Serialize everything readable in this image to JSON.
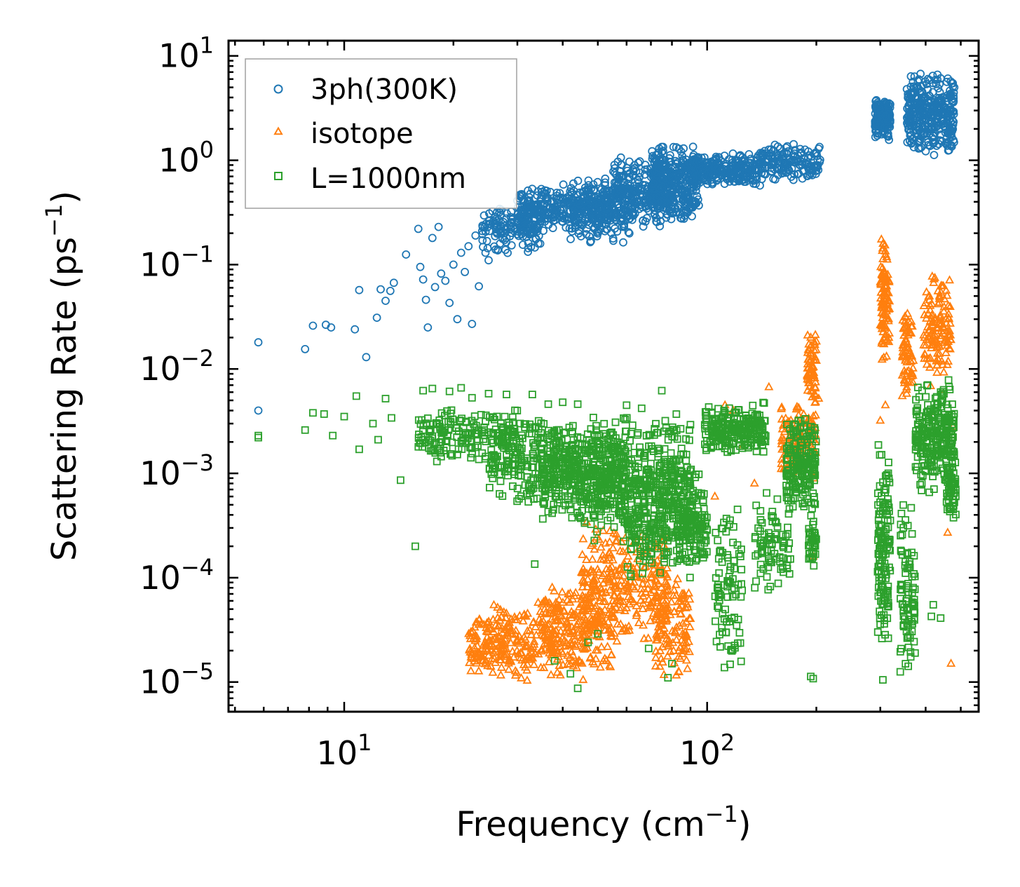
{
  "chart_data": {
    "type": "scatter",
    "xscale": "log",
    "yscale": "log",
    "xlim": [
      4.8,
      560
    ],
    "ylim": [
      5.2e-06,
      14
    ],
    "xlabel": "Frequency (cm",
    "xlabel_sup": "−1",
    "xlabel_end": ")",
    "ylabel": "Scattering Rate (ps",
    "ylabel_sup": "−1",
    "ylabel_end": ")",
    "xticks": [
      {
        "value": 10,
        "base": "10",
        "exp": "1"
      },
      {
        "value": 100,
        "base": "10",
        "exp": "2"
      }
    ],
    "yticks": [
      {
        "value": 10,
        "base": "10",
        "exp": "1"
      },
      {
        "value": 1,
        "base": "10",
        "exp": "0"
      },
      {
        "value": 0.1,
        "base": "10",
        "exp": "−1"
      },
      {
        "value": 0.01,
        "base": "10",
        "exp": "−2"
      },
      {
        "value": 0.001,
        "base": "10",
        "exp": "−3"
      },
      {
        "value": 0.0001,
        "base": "10",
        "exp": "−4"
      },
      {
        "value": 1e-05,
        "base": "10",
        "exp": "−5"
      }
    ],
    "legend_position": "top-left",
    "series": [
      {
        "name": "3ph(300K)",
        "marker": "circle",
        "color": "#1f77b4",
        "points": [
          [
            5.8,
            0.018
          ],
          [
            5.8,
            0.004
          ],
          [
            7.8,
            0.0155
          ],
          [
            8.2,
            0.026
          ],
          [
            8.9,
            0.0265
          ],
          [
            9.2,
            0.025
          ],
          [
            10.7,
            0.024
          ],
          [
            11.0,
            0.057
          ],
          [
            11.5,
            0.013
          ],
          [
            12.3,
            0.031
          ],
          [
            12.6,
            0.058
          ],
          [
            13.0,
            0.045
          ],
          [
            13.4,
            0.056
          ],
          [
            13.7,
            0.067
          ],
          [
            14.8,
            0.125
          ],
          [
            16.0,
            0.22
          ],
          [
            16.2,
            0.095
          ],
          [
            16.5,
            0.072
          ],
          [
            16.8,
            0.046
          ],
          [
            17.0,
            0.025
          ],
          [
            17.5,
            0.18
          ],
          [
            17.8,
            0.061
          ],
          [
            18.2,
            0.23
          ],
          [
            18.5,
            0.082
          ],
          [
            19.0,
            0.07
          ],
          [
            19.5,
            0.043
          ],
          [
            20.0,
            0.1
          ],
          [
            20.5,
            0.03
          ],
          [
            21.0,
            0.13
          ],
          [
            21.5,
            0.085
          ],
          [
            22.0,
            0.15
          ],
          [
            22.5,
            0.027
          ],
          [
            23.0,
            0.19
          ],
          [
            23.5,
            0.062
          ],
          [
            24.0,
            0.21
          ],
          [
            24.5,
            0.13
          ],
          [
            25.0,
            0.11
          ],
          [
            26.0,
            0.25
          ],
          [
            27.0,
            0.3
          ],
          [
            28.0,
            0.18
          ],
          [
            29.0,
            0.27
          ],
          [
            30.0,
            0.41
          ],
          [
            31.0,
            0.46
          ]
        ],
        "bands": [
          {
            "x": [
              24,
              35
            ],
            "y": [
              0.12,
              0.42
            ],
            "n": 140
          },
          {
            "x": [
              30,
              55
            ],
            "y": [
              0.2,
              0.6
            ],
            "n": 320
          },
          {
            "x": [
              42,
              62
            ],
            "y": [
              0.15,
              0.75
            ],
            "n": 160
          },
          {
            "x": [
              55,
              80
            ],
            "y": [
              0.22,
              1.1
            ],
            "n": 280
          },
          {
            "x": [
              70,
              95
            ],
            "y": [
              0.25,
              1.5
            ],
            "n": 300
          },
          {
            "x": [
              90,
              140
            ],
            "y": [
              0.55,
              1.2
            ],
            "n": 260
          },
          {
            "x": [
              140,
              205
            ],
            "y": [
              0.6,
              1.5
            ],
            "n": 160
          },
          {
            "x": [
              290,
              320
            ],
            "y": [
              1.5,
              4.2
            ],
            "n": 150
          },
          {
            "x": [
              355,
              480
            ],
            "y": [
              1.1,
              7.0
            ],
            "n": 360
          }
        ]
      },
      {
        "name": "isotope",
        "marker": "triangle",
        "color": "#ff7f0e",
        "points": [
          [
            112,
            0.0045
          ],
          [
            118,
            0.004
          ],
          [
            105,
            0.0006
          ],
          [
            97,
            0.00032
          ],
          [
            125,
            0.0018
          ],
          [
            148,
            0.0067
          ],
          [
            135,
            0.0008
          ],
          [
            160,
            0.0011
          ],
          [
            175,
            0.0016
          ],
          [
            193,
            0.02
          ],
          [
            200,
            0.012
          ],
          [
            196,
            0.00016
          ],
          [
            199,
            0.0036
          ],
          [
            203,
            0.0052
          ],
          [
            300,
            0.0032
          ],
          [
            310,
            0.0045
          ],
          [
            345,
            0.0055
          ],
          [
            355,
            0.025
          ],
          [
            365,
            0.0085
          ],
          [
            370,
            0.012
          ],
          [
            420,
            0.0035
          ],
          [
            430,
            0.0092
          ],
          [
            445,
            0.0057
          ],
          [
            460,
            0.00027
          ],
          [
            470,
            1.5e-05
          ],
          [
            476,
            0.0028
          ]
        ],
        "bands": [
          {
            "x": [
              22,
              38
            ],
            "y": [
              1e-05,
              6e-05
            ],
            "n": 260
          },
          {
            "x": [
              35,
              55
            ],
            "y": [
              1e-05,
              9e-05
            ],
            "n": 240
          },
          {
            "x": [
              45,
              78
            ],
            "y": [
              2e-05,
              0.00035
            ],
            "n": 300
          },
          {
            "x": [
              72,
              90
            ],
            "y": [
              1e-05,
              0.00012
            ],
            "n": 120
          },
          {
            "x": [
              160,
              200
            ],
            "y": [
              0.0008,
              0.005
            ],
            "n": 120
          },
          {
            "x": [
              188,
              200
            ],
            "y": [
              0.004,
              0.025
            ],
            "n": 60
          },
          {
            "x": [
              300,
              318
            ],
            "y": [
              0.009,
              0.22
            ],
            "n": 100
          },
          {
            "x": [
              345,
              372
            ],
            "y": [
              0.005,
              0.045
            ],
            "n": 70
          },
          {
            "x": [
              395,
              470
            ],
            "y": [
              0.006,
              0.09
            ],
            "n": 130
          }
        ]
      },
      {
        "name": "L=1000nm",
        "marker": "square",
        "color": "#2ca02c",
        "points": [
          [
            5.8,
            0.0022
          ],
          [
            5.8,
            0.0023
          ],
          [
            7.8,
            0.0026
          ],
          [
            8.2,
            0.0038
          ],
          [
            8.8,
            0.0037
          ],
          [
            9.3,
            0.0023
          ],
          [
            10.0,
            0.0035
          ],
          [
            10.8,
            0.0055
          ],
          [
            11.0,
            0.0017
          ],
          [
            12.0,
            0.003
          ],
          [
            12.4,
            0.0021
          ],
          [
            13.0,
            0.0052
          ],
          [
            13.5,
            0.0034
          ],
          [
            14.3,
            0.00086
          ],
          [
            15.7,
            0.0002
          ],
          [
            16.5,
            0.0062
          ],
          [
            17.5,
            0.0065
          ],
          [
            18.0,
            0.0013
          ],
          [
            19.5,
            0.0061
          ],
          [
            21.0,
            0.0066
          ],
          [
            22.5,
            0.0053
          ],
          [
            25.0,
            0.0058
          ],
          [
            28.0,
            0.0057
          ],
          [
            33.0,
            0.0057
          ],
          [
            36.5,
            0.0046
          ],
          [
            40.0,
            0.0048
          ],
          [
            44.0,
            0.0046
          ],
          [
            60.0,
            0.0045
          ],
          [
            66.0,
            0.0042
          ],
          [
            75.0,
            0.0062
          ],
          [
            42,
            1.2e-05
          ],
          [
            44,
            8.7e-06
          ],
          [
            38,
            1.6e-05
          ],
          [
            50,
            2.9e-05
          ],
          [
            78,
            1.1e-05
          ],
          [
            80,
            1.5e-05
          ],
          [
            33.5,
            0.000135
          ],
          [
            47,
            2.4e-05
          ],
          [
            69,
            2.1e-05
          ],
          [
            193,
            1.13e-05
          ],
          [
            196,
            1.08e-05
          ],
          [
            305,
            1.05e-05
          ],
          [
            360,
            0.000135
          ],
          [
            420,
            5.5e-05
          ],
          [
            415,
            4.26e-05
          ],
          [
            440,
            4.1e-05
          ]
        ],
        "bands": [
          {
            "x": [
              16,
              30
            ],
            "y": [
              0.0012,
              0.0045
            ],
            "n": 170
          },
          {
            "x": [
              25,
              45
            ],
            "y": [
              0.0005,
              0.004
            ],
            "n": 260
          },
          {
            "x": [
              35,
              60
            ],
            "y": [
              0.0003,
              0.003
            ],
            "n": 340
          },
          {
            "x": [
              48,
              90
            ],
            "y": [
              0.0002,
              0.004
            ],
            "n": 400
          },
          {
            "x": [
              60,
              100
            ],
            "y": [
              8e-05,
              0.0015
            ],
            "n": 240
          },
          {
            "x": [
              82,
              100
            ],
            "y": [
              0.00012,
              0.0008
            ],
            "n": 80
          },
          {
            "x": [
              98,
              145
            ],
            "y": [
              0.0015,
              0.0048
            ],
            "n": 240
          },
          {
            "x": [
              105,
              125
            ],
            "y": [
              1e-05,
              0.0006
            ],
            "n": 90
          },
          {
            "x": [
              135,
              170
            ],
            "y": [
              6e-05,
              0.0008
            ],
            "n": 80
          },
          {
            "x": [
              165,
              200
            ],
            "y": [
              0.0004,
              0.0036
            ],
            "n": 190
          },
          {
            "x": [
              190,
              200
            ],
            "y": [
              0.00012,
              0.0004
            ],
            "n": 40
          },
          {
            "x": [
              295,
              320
            ],
            "y": [
              2e-05,
              0.0025
            ],
            "n": 140
          },
          {
            "x": [
              340,
              375
            ],
            "y": [
              1e-05,
              0.0006
            ],
            "n": 90
          },
          {
            "x": [
              375,
              480
            ],
            "y": [
              0.0006,
              0.008
            ],
            "n": 260
          },
          {
            "x": [
              455,
              485
            ],
            "y": [
              0.0003,
              0.0016
            ],
            "n": 60
          }
        ]
      }
    ]
  }
}
